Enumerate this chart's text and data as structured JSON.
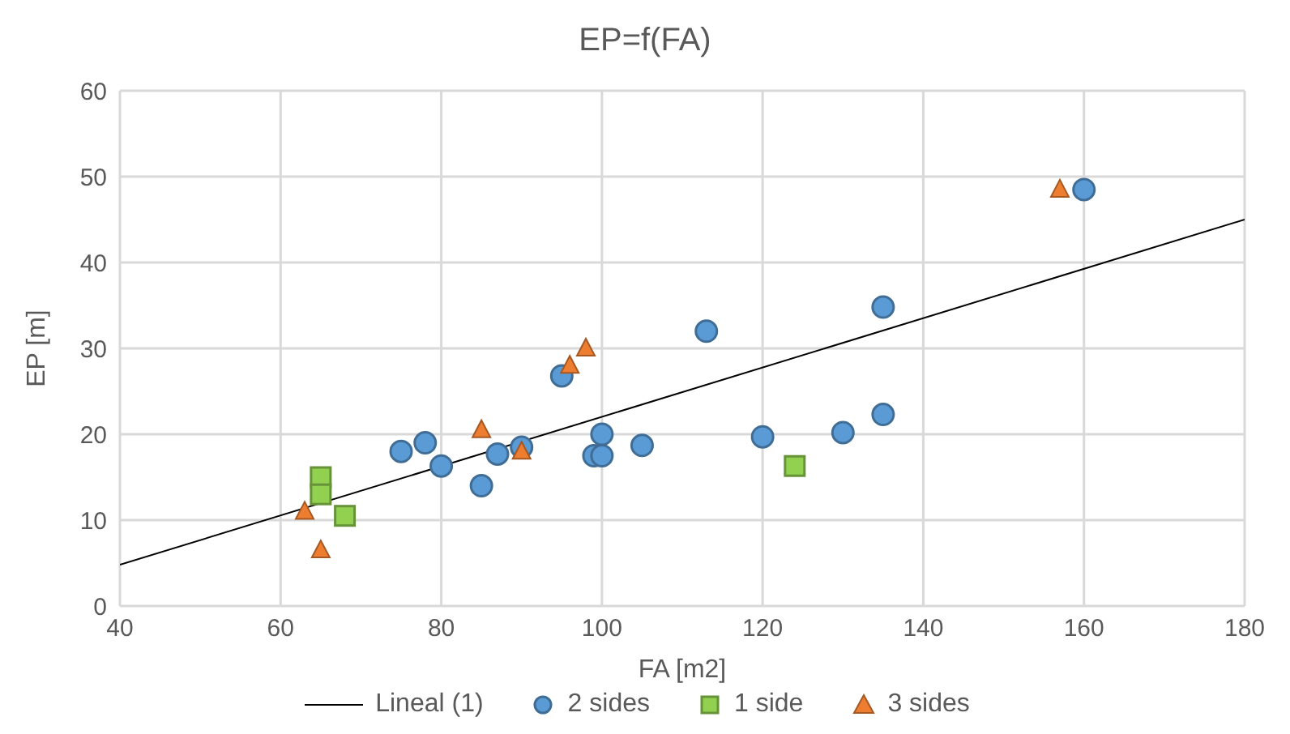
{
  "chart_data": {
    "type": "scatter",
    "title": "EP=f(FA)",
    "xlabel": "FA [m2]",
    "ylabel": "EP [m]",
    "xlim": [
      40,
      180
    ],
    "xticks": [
      40,
      60,
      80,
      100,
      120,
      140,
      160,
      180
    ],
    "ylim": [
      0,
      60
    ],
    "yticks": [
      0,
      10,
      20,
      30,
      40,
      50,
      60
    ],
    "grid": true,
    "legend": "bottom",
    "series": [
      {
        "name": "Lineal (1)",
        "type": "line",
        "color": "#000000",
        "marker": "none",
        "line_style": "solid",
        "x": [
          40,
          180
        ],
        "values": [
          4.8,
          45
        ]
      },
      {
        "name": "2 sides",
        "color": "#5b9bd5",
        "marker": "circle",
        "x": [
          75,
          78,
          80,
          85,
          87,
          90,
          95,
          99,
          100,
          100,
          105,
          113,
          120,
          130,
          135,
          135,
          160
        ],
        "values": [
          18,
          19,
          16.3,
          14,
          17.7,
          18.5,
          26.8,
          17.5,
          17.5,
          20,
          18.7,
          32,
          19.7,
          20.2,
          22.3,
          34.8,
          48.5
        ]
      },
      {
        "name": "1 side",
        "color": "#92d050",
        "marker": "square",
        "x": [
          65,
          65,
          68,
          124
        ],
        "values": [
          15,
          13,
          10.5,
          16.3
        ]
      },
      {
        "name": "3 sides",
        "color": "#ed7d31",
        "marker": "triangle",
        "x": [
          63,
          65,
          85,
          90,
          96,
          98,
          157
        ],
        "values": [
          11,
          6.5,
          20.5,
          18,
          28,
          30,
          48.5
        ]
      }
    ]
  }
}
